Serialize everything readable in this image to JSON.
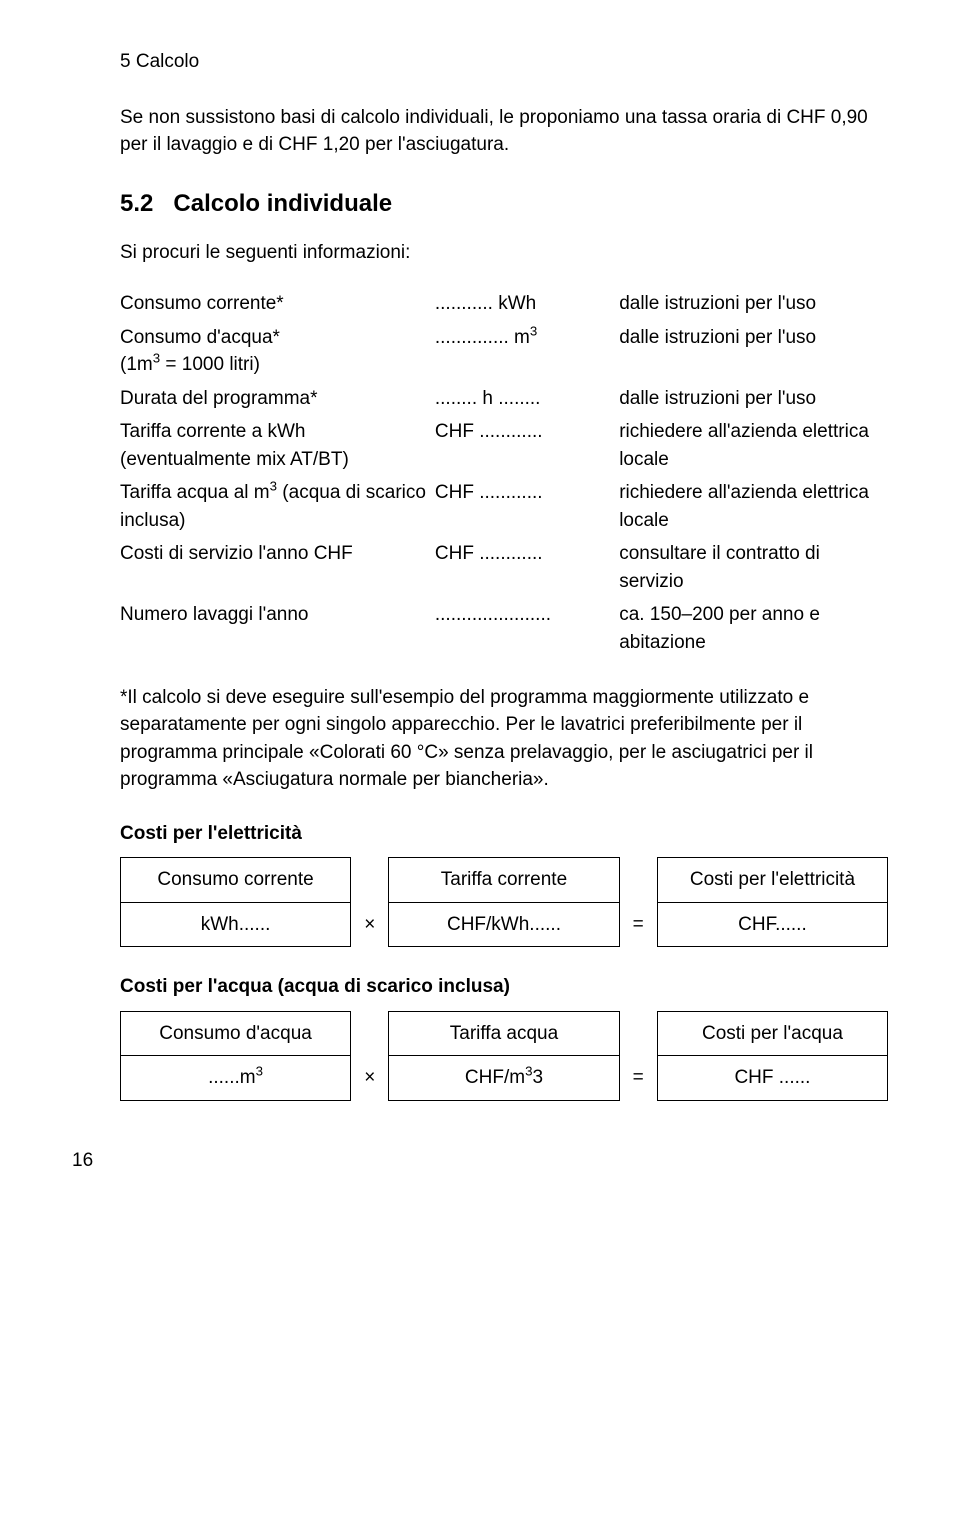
{
  "chapter": "5 Calcolo",
  "intro": "Se non sussistono basi di calcolo individuali, le proponiamo una tassa oraria di CHF 0,90 per il lavaggio e di CHF 1,20 per l'asciugatura.",
  "section_number": "5.2",
  "section_title": "Calcolo individuale",
  "section_sub": "Si procuri le seguenti informazioni:",
  "info_rows": [
    {
      "label": "Consumo corrente*",
      "value": "........... kWh",
      "note": "dalle istruzioni per l'uso"
    },
    {
      "label_html": "Consumo d'acqua*<br>(1m<sup>3</sup> = 1000 litri)",
      "value_html": ".............. m<sup>3</sup>",
      "note": "dalle istruzioni per l'uso"
    },
    {
      "label": "Durata del programma*",
      "value": "........ h ........",
      "note": "dalle istruzioni per l'uso"
    },
    {
      "label": "Tariffa corrente a kWh (eventualmente mix AT/BT)",
      "value": "CHF ............",
      "note": "richiedere all'azienda elettrica locale"
    },
    {
      "label_html": "Tariffa acqua al m<sup>3</sup> (acqua di scarico inclusa)",
      "value": "CHF ............",
      "note": "richiedere all'azienda elettrica locale"
    },
    {
      "label": "Costi di servizio l'anno CHF",
      "value": "CHF ............",
      "note": "consultare il contratto di servizio"
    },
    {
      "label": "Numero lavaggi l'anno",
      "value": "......................",
      "note": "ca. 150–200 per anno e abitazione"
    }
  ],
  "footnote": "*Il calcolo si deve eseguire sull'esempio del programma maggiormente utilizzato e separatamente per ogni singolo apparecchio. Per le lavatrici preferibilmente per il programma principale «Colorati 60 °C» senza prelavaggio, per le asciugatrici per il programma «Asciugatura normale per biancheria».",
  "elec_heading": "Costi per l'elettricità",
  "elec_table": {
    "headers": [
      "Consumo corrente",
      "Tariffa corrente",
      "Costi per l'elettricità"
    ],
    "cells": [
      "kWh......",
      "CHF/kWh......",
      "CHF......"
    ],
    "op1": "×",
    "op2": "="
  },
  "water_heading": "Costi per l'acqua (acqua di scarico inclusa)",
  "water_table": {
    "headers": [
      "Consumo d'acqua",
      "Tariffa acqua",
      "Costi per l'acqua"
    ],
    "cells_html": [
      "......m<sup>3</sup>",
      "CHF/m<sup>3</sup>3",
      "CHF ......"
    ],
    "op1": "×",
    "op2": "="
  },
  "page_number": "16"
}
